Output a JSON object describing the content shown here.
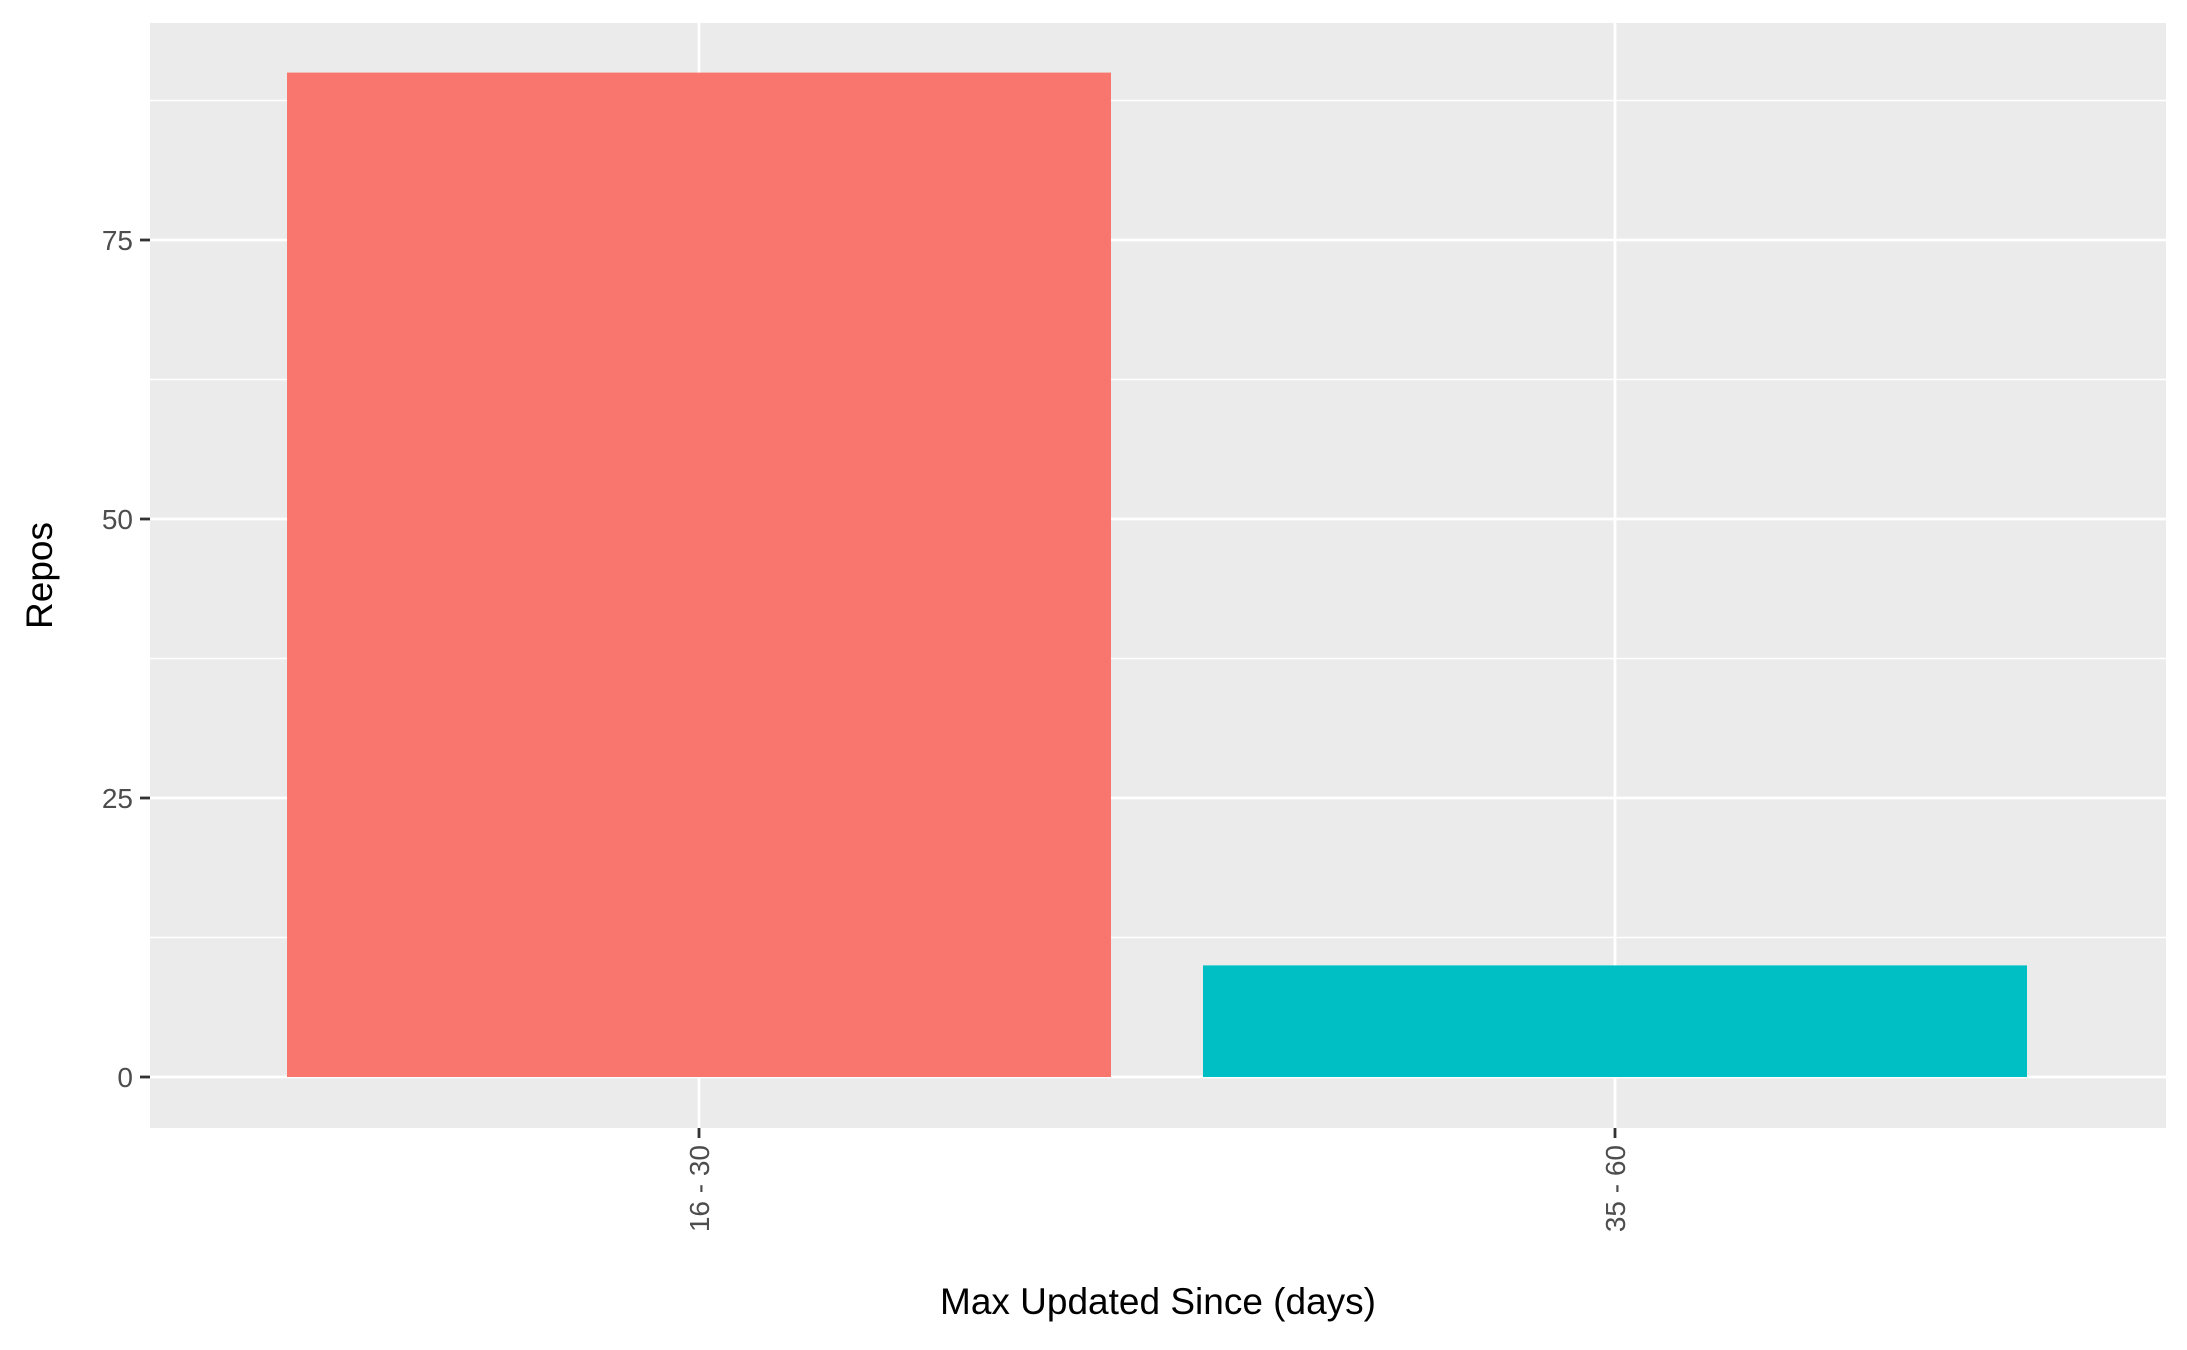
{
  "chart_data": {
    "type": "bar",
    "title": "",
    "xlabel": "Max Updated Since (days)",
    "ylabel": "Repos",
    "categories": [
      "16 - 30",
      "35 - 60"
    ],
    "values": [
      90,
      10
    ],
    "bar_colors": [
      "#F8766D",
      "#00BFC4"
    ],
    "ylim": [
      0,
      94.5
    ],
    "y_ticks": [
      0,
      25,
      50,
      75
    ],
    "y_tick_labels": [
      "0",
      "25",
      "50",
      "75"
    ],
    "grid": true,
    "legend": "none",
    "panel_background": "#EBEBEB",
    "grid_color": "#FFFFFF"
  }
}
